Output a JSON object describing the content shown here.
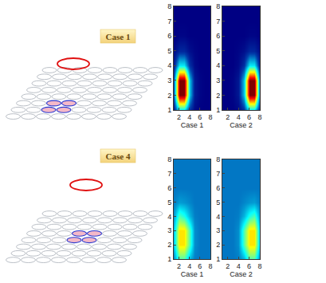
{
  "diagrams": [
    {
      "label": "Case 1"
    },
    {
      "label": "Case 4"
    }
  ],
  "chart_data": [
    {
      "type": "heatmap",
      "xlabel": "Case 1",
      "x": [
        1,
        2,
        3,
        4,
        5,
        6,
        7,
        8
      ],
      "y": [
        1,
        2,
        3,
        4,
        5,
        6,
        7,
        8
      ],
      "xlim": [
        1,
        8
      ],
      "ylim": [
        1,
        8
      ],
      "xticks": [
        2,
        4,
        6,
        8
      ],
      "yticks": [
        1,
        2,
        3,
        4,
        5,
        6,
        7,
        8
      ],
      "zlim": [
        0,
        1
      ],
      "cells": [
        [
          0.05,
          0.35,
          0.35,
          0.1,
          0.02,
          0,
          0,
          0
        ],
        [
          0.15,
          1,
          1,
          0.3,
          0.05,
          0.01,
          0,
          0
        ],
        [
          0.15,
          1,
          1,
          0.3,
          0.05,
          0.01,
          0,
          0
        ],
        [
          0.05,
          0.35,
          0.35,
          0.1,
          0.02,
          0,
          0,
          0
        ],
        [
          0.02,
          0.08,
          0.08,
          0.03,
          0.01,
          0,
          0,
          0
        ],
        [
          0,
          0.01,
          0.01,
          0,
          0,
          0,
          0,
          0
        ],
        [
          0,
          0,
          0,
          0,
          0,
          0,
          0,
          0
        ],
        [
          0,
          0,
          0,
          0,
          0,
          0,
          0,
          0
        ]
      ]
    },
    {
      "type": "heatmap",
      "xlabel": "Case 2",
      "x": [
        1,
        2,
        3,
        4,
        5,
        6,
        7,
        8
      ],
      "y": [
        1,
        2,
        3,
        4,
        5,
        6,
        7,
        8
      ],
      "xlim": [
        1,
        8
      ],
      "ylim": [
        1,
        8
      ],
      "xticks": [
        2,
        4,
        6,
        8
      ],
      "yticks": [
        1,
        2,
        3,
        4,
        5,
        6,
        7,
        8
      ],
      "zlim": [
        0,
        1
      ],
      "cells": [
        [
          0,
          0,
          0,
          0.02,
          0.1,
          0.35,
          0.35,
          0.05
        ],
        [
          0,
          0,
          0.01,
          0.05,
          0.3,
          1,
          1,
          0.15
        ],
        [
          0,
          0,
          0.01,
          0.05,
          0.3,
          1,
          1,
          0.15
        ],
        [
          0,
          0,
          0,
          0.02,
          0.1,
          0.35,
          0.35,
          0.05
        ],
        [
          0,
          0,
          0,
          0.01,
          0.03,
          0.08,
          0.08,
          0.02
        ],
        [
          0,
          0,
          0,
          0,
          0,
          0.01,
          0.01,
          0
        ],
        [
          0,
          0,
          0,
          0,
          0,
          0,
          0,
          0
        ],
        [
          0,
          0,
          0,
          0,
          0,
          0,
          0,
          0
        ]
      ]
    },
    {
      "type": "heatmap",
      "xlabel": "Case 1",
      "x": [
        1,
        2,
        3,
        4,
        5,
        6,
        7,
        8
      ],
      "y": [
        1,
        2,
        3,
        4,
        5,
        6,
        7,
        8
      ],
      "xlim": [
        1,
        8
      ],
      "ylim": [
        1,
        8
      ],
      "xticks": [
        2,
        4,
        6,
        8
      ],
      "yticks": [
        1,
        2,
        3,
        4,
        5,
        6,
        7,
        8
      ],
      "zlim": [
        0,
        1
      ],
      "cells": [
        [
          0.22,
          0.45,
          0.45,
          0.28,
          0.21,
          0.2,
          0.2,
          0.2
        ],
        [
          0.3,
          0.65,
          0.65,
          0.45,
          0.23,
          0.2,
          0.2,
          0.2
        ],
        [
          0.3,
          0.65,
          0.65,
          0.45,
          0.23,
          0.2,
          0.2,
          0.2
        ],
        [
          0.24,
          0.45,
          0.4,
          0.28,
          0.21,
          0.2,
          0.2,
          0.2
        ],
        [
          0.21,
          0.25,
          0.24,
          0.22,
          0.2,
          0.2,
          0.2,
          0.2
        ],
        [
          0.2,
          0.2,
          0.2,
          0.2,
          0.2,
          0.2,
          0.2,
          0.2
        ],
        [
          0.2,
          0.2,
          0.2,
          0.2,
          0.2,
          0.2,
          0.2,
          0.2
        ],
        [
          0.2,
          0.2,
          0.2,
          0.2,
          0.2,
          0.2,
          0.2,
          0.2
        ]
      ]
    },
    {
      "type": "heatmap",
      "xlabel": "Case 2",
      "x": [
        1,
        2,
        3,
        4,
        5,
        6,
        7,
        8
      ],
      "y": [
        1,
        2,
        3,
        4,
        5,
        6,
        7,
        8
      ],
      "xlim": [
        1,
        8
      ],
      "ylim": [
        1,
        8
      ],
      "xticks": [
        2,
        4,
        6,
        8
      ],
      "yticks": [
        1,
        2,
        3,
        4,
        5,
        6,
        7,
        8
      ],
      "zlim": [
        0,
        1
      ],
      "cells": [
        [
          0.2,
          0.2,
          0.2,
          0.21,
          0.28,
          0.45,
          0.45,
          0.22
        ],
        [
          0.2,
          0.2,
          0.2,
          0.23,
          0.45,
          0.65,
          0.65,
          0.3
        ],
        [
          0.2,
          0.2,
          0.2,
          0.23,
          0.45,
          0.65,
          0.65,
          0.3
        ],
        [
          0.2,
          0.2,
          0.2,
          0.21,
          0.28,
          0.4,
          0.45,
          0.24
        ],
        [
          0.2,
          0.2,
          0.2,
          0.2,
          0.22,
          0.24,
          0.25,
          0.21
        ],
        [
          0.2,
          0.2,
          0.2,
          0.2,
          0.2,
          0.2,
          0.2,
          0.2
        ],
        [
          0.2,
          0.2,
          0.2,
          0.2,
          0.2,
          0.2,
          0.2,
          0.2
        ],
        [
          0.2,
          0.2,
          0.2,
          0.2,
          0.2,
          0.2,
          0.2,
          0.2
        ]
      ]
    }
  ]
}
